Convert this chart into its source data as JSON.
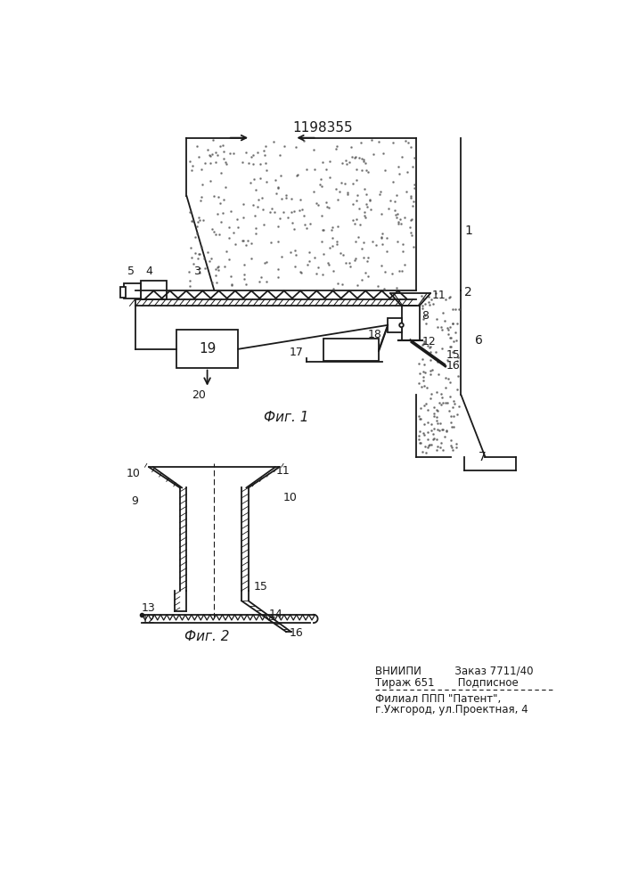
{
  "title": "1198355",
  "fig1_caption": "Фиг. 1",
  "fig2_caption": "Фиг. 2",
  "bottom_text_line1": "ВНИИПИ          Заказ 7711/40",
  "bottom_text_line2": "Тираж 651       Подписное",
  "bottom_text_line3": "Филиал ППП \"Патент\",",
  "bottom_text_line4": "г.Ужгород, ул.Проектная, 4",
  "lc": "#1a1a1a"
}
